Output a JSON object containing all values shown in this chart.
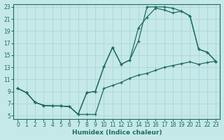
{
  "xlabel": "Humidex (Indice chaleur)",
  "background_color": "#c5e8e8",
  "grid_color": "#b0d8d8",
  "line_color": "#1e6b5e",
  "xlim": [
    -0.5,
    23.5
  ],
  "ylim": [
    4.5,
    23.5
  ],
  "xticks": [
    0,
    1,
    2,
    3,
    4,
    5,
    6,
    7,
    8,
    9,
    10,
    11,
    12,
    13,
    14,
    15,
    16,
    17,
    18,
    19,
    20,
    21,
    22,
    23
  ],
  "yticks": [
    5,
    7,
    9,
    11,
    13,
    15,
    17,
    19,
    21,
    23
  ],
  "line1_x": [
    0,
    1,
    2,
    3,
    4,
    5,
    6,
    7,
    8,
    9,
    10,
    11,
    12,
    13,
    14,
    15,
    16,
    17,
    18,
    19,
    20,
    21,
    22,
    23
  ],
  "line1_y": [
    9.5,
    8.8,
    7.2,
    6.7,
    6.6,
    6.6,
    6.5,
    5.2,
    8.8,
    9.0,
    13.1,
    16.3,
    13.5,
    14.2,
    17.3,
    23.0,
    23.0,
    23.0,
    22.8,
    22.3,
    21.5,
    16.0,
    15.5,
    14.0
  ],
  "line2_x": [
    0,
    1,
    2,
    3,
    4,
    5,
    6,
    7,
    8,
    9,
    10,
    11,
    12,
    13,
    14,
    15,
    16,
    17,
    18,
    19,
    20,
    21,
    22,
    23
  ],
  "line2_y": [
    9.5,
    8.8,
    7.2,
    6.7,
    6.6,
    6.6,
    6.5,
    5.2,
    8.8,
    9.0,
    13.1,
    16.3,
    13.5,
    14.2,
    19.5,
    21.3,
    22.8,
    22.5,
    22.0,
    22.3,
    21.5,
    16.0,
    15.5,
    14.0
  ],
  "line3_x": [
    0,
    1,
    2,
    3,
    4,
    5,
    6,
    7,
    8,
    9,
    10,
    11,
    12,
    13,
    14,
    15,
    16,
    17,
    18,
    19,
    20,
    21,
    22,
    23
  ],
  "line3_y": [
    9.5,
    8.8,
    7.2,
    6.7,
    6.6,
    6.6,
    6.5,
    5.2,
    5.2,
    5.2,
    9.5,
    10.0,
    10.5,
    11.2,
    11.7,
    12.0,
    12.5,
    13.0,
    13.3,
    13.6,
    13.9,
    13.5,
    13.8,
    14.0
  ]
}
